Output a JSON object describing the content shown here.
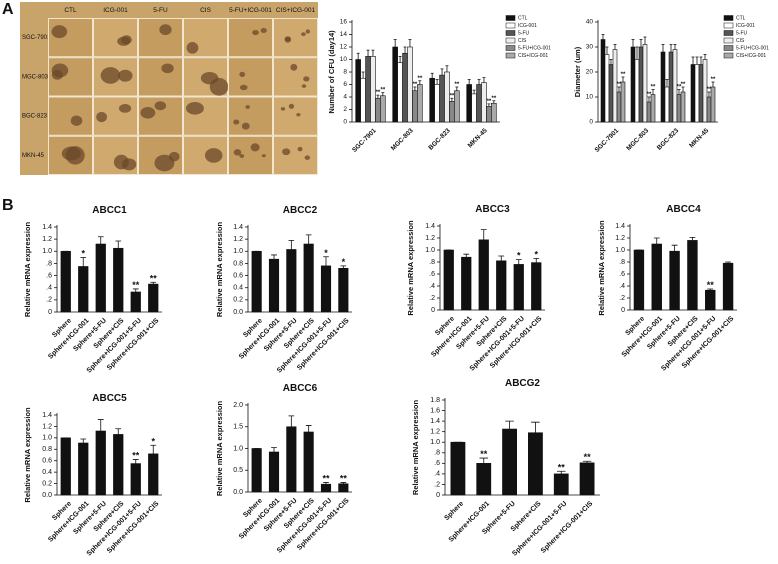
{
  "panel_labels": [
    "A",
    "B"
  ],
  "photo_panel": {
    "columns": [
      "CTL",
      "ICG-001",
      "5-FU",
      "CIS",
      "5-FU+ICG-001",
      "CIS+ICG-001"
    ],
    "rows": [
      "SGC-7901",
      "MGC-803",
      "BGC-823",
      "MKN-45"
    ]
  },
  "chart_data": [
    {
      "type": "grouped_bar",
      "y_label": "Number of CFU (day14)",
      "categories": [
        "SGC-7901",
        "MGC-803",
        "BGC-823",
        "MKN-45"
      ],
      "series": [
        {
          "name": "CTL",
          "color": "#111111",
          "values": [
            10,
            12,
            7,
            6
          ],
          "errors": [
            1,
            1.2,
            0.8,
            0.8
          ],
          "significance": [
            null,
            null,
            null,
            null
          ]
        },
        {
          "name": "ICG-001",
          "color": "#ffffff",
          "values": [
            7,
            9.5,
            6,
            4.5
          ],
          "errors": [
            1,
            1,
            0.8,
            0.6
          ],
          "significance": [
            null,
            null,
            null,
            null
          ]
        },
        {
          "name": "5-FU",
          "color": "#555555",
          "values": [
            10.5,
            11,
            7.5,
            6
          ],
          "errors": [
            1,
            1,
            1,
            0.8
          ],
          "significance": [
            null,
            null,
            null,
            null
          ]
        },
        {
          "name": "CIS",
          "color": "#eeeeee",
          "values": [
            10.5,
            12,
            8,
            6.3
          ],
          "errors": [
            1,
            1.2,
            1,
            0.8
          ],
          "significance": [
            null,
            null,
            null,
            null
          ]
        },
        {
          "name": "5-FU+ICG-001",
          "color": "#888888",
          "values": [
            3.8,
            5,
            3.3,
            2.5
          ],
          "errors": [
            0.5,
            0.6,
            0.5,
            0.4
          ],
          "significance": [
            "**",
            "**",
            "**",
            "**"
          ]
        },
        {
          "name": "CIS+ICG-001",
          "color": "#aaaaaa",
          "values": [
            4.2,
            6,
            5,
            3
          ],
          "errors": [
            0.5,
            0.6,
            0.6,
            0.4
          ],
          "significance": [
            "**",
            "**",
            "**",
            "**"
          ]
        }
      ],
      "ylim": [
        0,
        16
      ],
      "yticks": [
        0,
        2,
        4,
        6,
        8,
        10,
        12,
        14,
        16
      ],
      "legend": "upper right"
    },
    {
      "type": "grouped_bar",
      "y_label": "Diameter (um)",
      "categories": [
        "SGC-7901",
        "MGC-803",
        "BGC-823",
        "MKN-45"
      ],
      "series": [
        {
          "name": "CTL",
          "color": "#111111",
          "values": [
            33,
            30,
            28,
            23
          ],
          "errors": [
            2,
            3,
            3,
            3
          ],
          "significance": [
            null,
            null,
            null,
            null
          ]
        },
        {
          "name": "ICG-001",
          "color": "#ffffff",
          "values": [
            27,
            25,
            14,
            23
          ],
          "errors": [
            3,
            5,
            3,
            3
          ],
          "significance": [
            null,
            null,
            null,
            null
          ]
        },
        {
          "name": "5-FU",
          "color": "#555555",
          "values": [
            23,
            30,
            28,
            23
          ],
          "errors": [
            2,
            3,
            3,
            3
          ],
          "significance": [
            null,
            null,
            null,
            null
          ]
        },
        {
          "name": "CIS",
          "color": "#eeeeee",
          "values": [
            29,
            31,
            29,
            25
          ],
          "errors": [
            2,
            3,
            2,
            2
          ],
          "significance": [
            null,
            null,
            null,
            null
          ]
        },
        {
          "name": "5-FU+ICG-001",
          "color": "#888888",
          "values": [
            12,
            8,
            11,
            10
          ],
          "errors": [
            2,
            2,
            2,
            2
          ],
          "significance": [
            "**",
            "**",
            "**",
            "**"
          ]
        },
        {
          "name": "CIS+ICG-001",
          "color": "#aaaaaa",
          "values": [
            16,
            11,
            12,
            14
          ],
          "errors": [
            2,
            2,
            2,
            2
          ],
          "significance": [
            "**",
            "**",
            "**",
            "**"
          ]
        }
      ],
      "ylim": [
        0,
        40
      ],
      "yticks": [
        0,
        10,
        20,
        30,
        40
      ],
      "legend": "upper right"
    },
    {
      "type": "bar",
      "title": "ABCC1",
      "y_label": "Relative mRNA expression",
      "color": "#111111",
      "categories": [
        "Sphere",
        "Sphere+ICG-001",
        "Sphere+5-FU",
        "Sphere+CIS",
        "Sphere+ICG-001+5-FU",
        "Sphere+ICG-001+CIS"
      ],
      "values": [
        1.0,
        0.75,
        1.12,
        1.05,
        0.33,
        0.46
      ],
      "errors": [
        0,
        0.15,
        0.12,
        0.12,
        0.05,
        0.03
      ],
      "significance": [
        null,
        "*",
        null,
        null,
        "**",
        "**"
      ],
      "ylim": [
        0,
        1.4
      ],
      "yticks": [
        0,
        {
          "value": 0.2,
          "label": ".2"
        },
        {
          "value": 0.4,
          "label": ".4"
        },
        {
          "value": 0.6,
          "label": ".6"
        },
        {
          "value": 0.8,
          "label": ".8"
        },
        {
          "value": 1,
          "label": "1.0"
        },
        1.2,
        1.4
      ]
    },
    {
      "type": "bar",
      "title": "ABCC2",
      "y_label": "Relative mRNA expression",
      "color": "#111111",
      "categories": [
        "Sphere",
        "Sphere+ICG-001",
        "Sphere+5-FU",
        "Sphere+CIS",
        "Sphere+ICG-001+5-FU",
        "Sphere+ICG-001+CIS"
      ],
      "values": [
        1.0,
        0.87,
        1.03,
        1.12,
        0.76,
        0.72
      ],
      "errors": [
        0,
        0.07,
        0.15,
        0.15,
        0.15,
        0.04
      ],
      "significance": [
        null,
        null,
        null,
        null,
        "*",
        "*"
      ],
      "ylim": [
        0,
        1.4
      ],
      "yticks": [
        {
          "value": 0,
          "label": "0.0"
        },
        0.2,
        0.4,
        0.6,
        0.8,
        {
          "value": 1,
          "label": "1.0"
        },
        1.2,
        1.4
      ]
    },
    {
      "type": "bar",
      "title": "ABCC3",
      "y_label": "Relative mRNA expression",
      "color": "#111111",
      "categories": [
        "Sphere",
        "Sphere+ICG-001",
        "Sphere+5-FU",
        "Sphere+CIS",
        "Sphere+ICG-001+5-FU",
        "Sphere+ICG-001+CIS"
      ],
      "values": [
        1.0,
        0.88,
        1.17,
        0.82,
        0.76,
        0.79
      ],
      "errors": [
        0,
        0.05,
        0.17,
        0.08,
        0.08,
        0.07
      ],
      "significance": [
        null,
        null,
        null,
        null,
        "*",
        "*"
      ],
      "ylim": [
        0,
        1.4
      ],
      "yticks": [
        0,
        {
          "value": 0.2,
          "label": ".2"
        },
        {
          "value": 0.4,
          "label": ".4"
        },
        {
          "value": 0.6,
          "label": ".6"
        },
        {
          "value": 0.8,
          "label": ".8"
        },
        {
          "value": 1,
          "label": "1.0"
        },
        1.2,
        1.4
      ]
    },
    {
      "type": "bar",
      "title": "ABCC4",
      "y_label": "Relative mRNA expression",
      "color": "#111111",
      "categories": [
        "Sphere",
        "Sphere+ICG-001",
        "Sphere+5-FU",
        "Sphere+CIS",
        "Sphere+ICG-001+5-FU",
        "Sphere+ICG-001+CIS"
      ],
      "values": [
        1.0,
        1.1,
        0.98,
        1.16,
        0.33,
        0.78
      ],
      "errors": [
        0,
        0.1,
        0.1,
        0.05,
        0.02,
        0.02
      ],
      "significance": [
        null,
        null,
        null,
        null,
        "**",
        null
      ],
      "ylim": [
        0,
        1.4
      ],
      "yticks": [
        0,
        {
          "value": 0.2,
          "label": ".2"
        },
        {
          "value": 0.4,
          "label": ".4"
        },
        {
          "value": 0.6,
          "label": ".6"
        },
        {
          "value": 0.8,
          "label": ".8"
        },
        {
          "value": 1,
          "label": "1.0"
        },
        1.2,
        1.4
      ]
    },
    {
      "type": "bar",
      "title": "ABCC5",
      "y_label": "Relative mRNA expression",
      "color": "#111111",
      "categories": [
        "Sphere",
        "Sphere+ICG-001",
        "Sphere+5-FU",
        "Sphere+CIS",
        "Sphere+ICG-001+5-FU",
        "Sphere+ICG-001+CIS"
      ],
      "values": [
        1.0,
        0.91,
        1.12,
        1.06,
        0.55,
        0.72
      ],
      "errors": [
        0,
        0.07,
        0.2,
        0.1,
        0.07,
        0.15
      ],
      "significance": [
        null,
        null,
        null,
        null,
        "**",
        "*"
      ],
      "ylim": [
        0,
        1.4
      ],
      "yticks": [
        {
          "value": 0,
          "label": "0.0"
        },
        0.2,
        0.4,
        0.6,
        0.8,
        {
          "value": 1,
          "label": "1.0"
        },
        1.2,
        1.4
      ]
    },
    {
      "type": "bar",
      "title": "ABCC6",
      "y_label": "Relative mRNA expression",
      "color": "#111111",
      "categories": [
        "Sphere",
        "Sphere+ICG-001",
        "Sphere+5-FU",
        "Sphere+CIS",
        "Sphere+ICG-001+5-FU",
        "Sphere+ICG-001+CIS"
      ],
      "values": [
        1.0,
        0.92,
        1.5,
        1.38,
        0.18,
        0.19
      ],
      "errors": [
        0,
        0.1,
        0.25,
        0.15,
        0.04,
        0.03
      ],
      "significance": [
        null,
        null,
        null,
        null,
        "**",
        "**"
      ],
      "ylim": [
        0,
        2
      ],
      "yticks": [
        {
          "value": 0,
          "label": "0.0"
        },
        0.5,
        {
          "value": 1,
          "label": "1.0"
        },
        1.5,
        {
          "value": 2,
          "label": "2.0"
        }
      ]
    },
    {
      "type": "bar",
      "title": "ABCG2",
      "y_label": "Relative mRNA expression",
      "color": "#111111",
      "categories": [
        "Sphere",
        "Sphere+ICG-001",
        "Sphere+5-FU",
        "Sphere+CIS",
        "Sphere+ICG-001+5-FU",
        "Sphere+ICG-001+CIS"
      ],
      "values": [
        1.0,
        0.6,
        1.25,
        1.18,
        0.4,
        0.61
      ],
      "errors": [
        0,
        0.1,
        0.15,
        0.2,
        0.05,
        0.03
      ],
      "significance": [
        null,
        "**",
        null,
        null,
        "**",
        "**"
      ],
      "ylim": [
        0,
        1.8
      ],
      "yticks": [
        0,
        {
          "value": 0.2,
          "label": ".2"
        },
        {
          "value": 0.4,
          "label": ".4"
        },
        {
          "value": 0.6,
          "label": ".6"
        },
        {
          "value": 0.8,
          "label": ".8"
        },
        {
          "value": 1,
          "label": "1.0"
        },
        1.2,
        1.4,
        1.6,
        1.8
      ]
    }
  ]
}
